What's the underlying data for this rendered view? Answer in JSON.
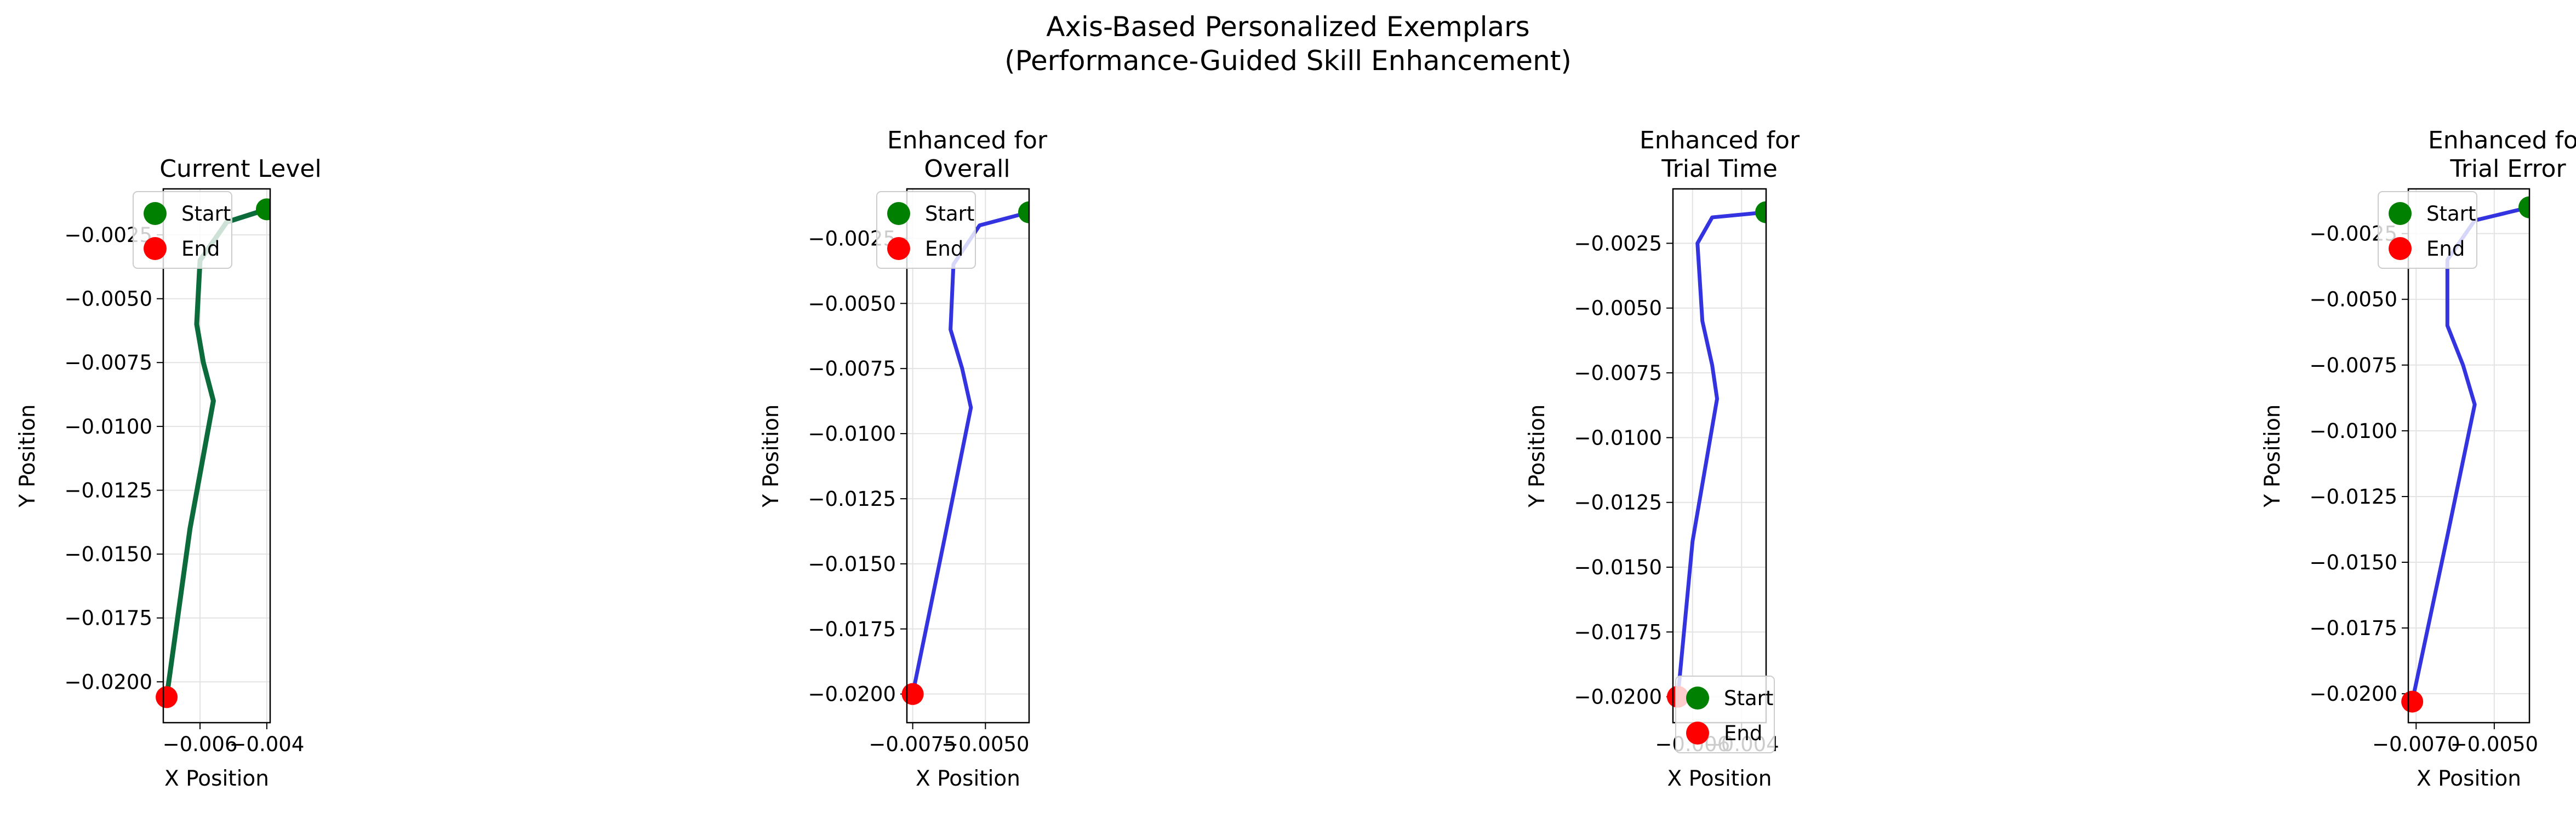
{
  "figure": {
    "title_line1": "Axis-Based Personalized Exemplars",
    "title_line2": "(Performance-Guided Skill Enhancement)"
  },
  "colors": {
    "start": "#008000",
    "end": "#ff0000",
    "current": "#0b6b3a",
    "enhanced": "#3333e0"
  },
  "chart_data": [
    {
      "type": "line",
      "title": "Current Level",
      "xlabel": "X Position",
      "ylabel": "Y Position",
      "line_color": "#0b6b3a",
      "x_ticks": [
        "−0.006",
        "−0.004"
      ],
      "y_ticks": [
        "−0.0025",
        "−0.0050",
        "−0.0075",
        "−0.0100",
        "−0.0125",
        "−0.0150",
        "−0.0175",
        "−0.0200"
      ],
      "xlim": [
        -0.0071,
        -0.0039
      ],
      "ylim": [
        -0.0216,
        -0.0007
      ],
      "legend": {
        "position": "top-left",
        "entries": [
          "Start",
          "End"
        ]
      },
      "grid": true,
      "x": [
        -0.004,
        -0.0052,
        -0.006,
        -0.0061,
        -0.0059,
        -0.0056,
        -0.0063,
        -0.007
      ],
      "y": [
        -0.0015,
        -0.002,
        -0.0035,
        -0.006,
        -0.0075,
        -0.009,
        -0.014,
        -0.0206
      ],
      "start": [
        -0.004,
        -0.0015
      ],
      "end": [
        -0.007,
        -0.0206
      ]
    },
    {
      "type": "line",
      "title": "Enhanced for\nOverall",
      "xlabel": "X Position",
      "ylabel": "Y Position",
      "line_color": "#3333e0",
      "x_ticks": [
        "−0.0075",
        "−0.0050"
      ],
      "y_ticks": [
        "−0.0025",
        "−0.0050",
        "−0.0075",
        "−0.0100",
        "−0.0125",
        "−0.0150",
        "−0.0175",
        "−0.0200"
      ],
      "xlim": [
        -0.0077,
        -0.0035
      ],
      "ylim": [
        -0.0211,
        -0.0006
      ],
      "legend": {
        "position": "top-left",
        "entries": [
          "Start",
          "End"
        ]
      },
      "grid": true,
      "x": [
        -0.0035,
        -0.0052,
        -0.0061,
        -0.0062,
        -0.0058,
        -0.0055,
        -0.0064,
        -0.0075
      ],
      "y": [
        -0.0015,
        -0.002,
        -0.0035,
        -0.006,
        -0.0075,
        -0.009,
        -0.014,
        -0.02
      ],
      "start": [
        -0.0035,
        -0.0015
      ],
      "end": [
        -0.0075,
        -0.02
      ]
    },
    {
      "type": "line",
      "title": "Enhanced for\nTrial Time",
      "xlabel": "X Position",
      "ylabel": "Y Position",
      "line_color": "#3333e0",
      "x_ticks": [
        "−0.006",
        "−0.004"
      ],
      "y_ticks": [
        "−0.0025",
        "−0.0050",
        "−0.0075",
        "−0.0100",
        "−0.0125",
        "−0.0150",
        "−0.0175",
        "−0.0200"
      ],
      "xlim": [
        -0.0068,
        -0.003
      ],
      "ylim": [
        -0.021,
        -0.0004
      ],
      "legend": {
        "position": "bottom-left",
        "entries": [
          "Start",
          "End"
        ]
      },
      "grid": true,
      "x": [
        -0.003,
        -0.0052,
        -0.0058,
        -0.0056,
        -0.0052,
        -0.005,
        -0.006,
        -0.0066
      ],
      "y": [
        -0.0013,
        -0.0015,
        -0.0025,
        -0.0055,
        -0.0072,
        -0.0085,
        -0.014,
        -0.02
      ],
      "start": [
        -0.003,
        -0.0013
      ],
      "end": [
        -0.0066,
        -0.02
      ]
    },
    {
      "type": "line",
      "title": "Enhanced for\nTrial Error",
      "xlabel": "X Position",
      "ylabel": "Y Position",
      "line_color": "#3333e0",
      "x_ticks": [
        "−0.0070",
        "−0.0050"
      ],
      "y_ticks": [
        "−0.0025",
        "−0.0050",
        "−0.0075",
        "−0.0100",
        "−0.0125",
        "−0.0150",
        "−0.0175",
        "−0.0200"
      ],
      "xlim": [
        -0.0072,
        -0.0041
      ],
      "ylim": [
        -0.0211,
        -0.0008
      ],
      "legend": {
        "position": "top-left",
        "entries": [
          "Start",
          "End"
        ]
      },
      "grid": true,
      "x": [
        -0.0041,
        -0.0055,
        -0.0062,
        -0.0062,
        -0.0058,
        -0.0055,
        -0.0062,
        -0.0071
      ],
      "y": [
        -0.0015,
        -0.002,
        -0.0035,
        -0.006,
        -0.0075,
        -0.009,
        -0.014,
        -0.0203
      ],
      "start": [
        -0.0041,
        -0.0015
      ],
      "end": [
        -0.0071,
        -0.0203
      ]
    }
  ]
}
